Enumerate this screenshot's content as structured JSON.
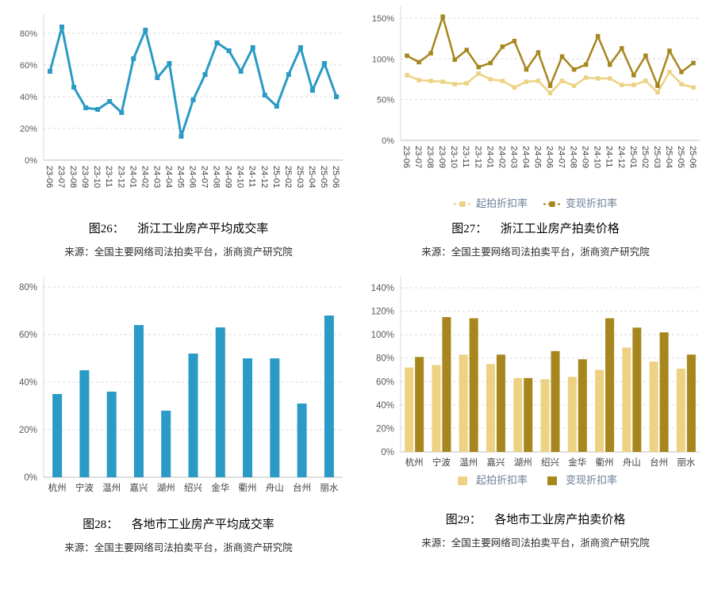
{
  "palette": {
    "teal": "#2B9AC4",
    "gold_light": "#EDD284",
    "gold_dark": "#A6861D",
    "grid_color": "#D9D9D9",
    "axis_color": "#BFBFBF",
    "tick_label_color": "#595959",
    "x_label_color": "#404040",
    "legend_text_color": "#6C7F96"
  },
  "months": [
    "23-06",
    "23-07",
    "23-08",
    "23-09",
    "23-10",
    "23-11",
    "23-12",
    "24-01",
    "24-02",
    "24-03",
    "24-04",
    "24-05",
    "24-06",
    "24-07",
    "24-08",
    "24-09",
    "24-10",
    "24-11",
    "24-12",
    "25-01",
    "25-02",
    "25-03",
    "25-04",
    "25-05",
    "25-06"
  ],
  "cities": [
    "杭州",
    "宁波",
    "温州",
    "嘉兴",
    "湖州",
    "绍兴",
    "金华",
    "衢州",
    "舟山",
    "台州",
    "丽水"
  ],
  "figures": [
    {
      "id": "fig26",
      "title_label": "图26：",
      "title": "浙江工业房产平均成交率",
      "source": "来源：全国主要网络司法拍卖平台，浙商资产研究院",
      "chart_data": {
        "type": "line",
        "x_key": "months",
        "yticks": [
          0,
          20,
          40,
          60,
          80
        ],
        "ytick_suffix": "%",
        "grid": "dashed-horizontal",
        "legend": false,
        "x_label_rotation": 90,
        "series": [
          {
            "name": "平均成交率",
            "color": "#2B9AC4",
            "values": [
              56,
              84,
              46,
              33,
              32,
              37,
              30,
              64,
              82,
              52,
              61,
              15,
              38,
              54,
              74,
              69,
              56,
              71,
              41,
              34,
              54,
              71,
              44,
              61,
              40
            ]
          }
        ]
      }
    },
    {
      "id": "fig27",
      "title_label": "图27：",
      "title": "浙江工业房产拍卖价格",
      "source": "来源：全国主要网络司法拍卖平台，浙商资产研究院",
      "chart_data": {
        "type": "line",
        "x_key": "months",
        "yticks": [
          0,
          50,
          100,
          150
        ],
        "ytick_suffix": "%",
        "grid": "dashed-horizontal",
        "legend": true,
        "legend_marker": "line",
        "legend_position": "bottom",
        "x_label_rotation": 90,
        "series": [
          {
            "name": "起拍折扣率",
            "color": "#EDD284",
            "values": [
              80,
              74,
              73,
              72,
              69,
              70,
              82,
              75,
              73,
              65,
              72,
              73,
              58,
              73,
              67,
              77,
              76,
              76,
              68,
              68,
              73,
              59,
              84,
              69,
              65
            ]
          },
          {
            "name": "变现折扣率",
            "color": "#A6861D",
            "values": [
              104,
              96,
              107,
              152,
              99,
              111,
              90,
              95,
              115,
              122,
              87,
              108,
              67,
              103,
              87,
              93,
              128,
              93,
              113,
              80,
              104,
              67,
              110,
              84,
              95
            ]
          }
        ]
      }
    },
    {
      "id": "fig28",
      "title_label": "图28：",
      "title": "各地市工业房产平均成交率",
      "source": "来源：全国主要网络司法拍卖平台，浙商资产研究院",
      "chart_data": {
        "type": "bar",
        "x_key": "cities",
        "yticks": [
          0,
          20,
          40,
          60,
          80
        ],
        "ytick_suffix": "%",
        "grid": "dashed-horizontal",
        "legend": false,
        "x_label_rotation": 0,
        "series": [
          {
            "name": "平均成交率",
            "color": "#2B9AC4",
            "values": [
              35,
              45,
              36,
              64,
              28,
              52,
              63,
              50,
              50,
              31,
              68
            ]
          }
        ]
      }
    },
    {
      "id": "fig29",
      "title_label": "图29：",
      "title": "各地市工业房产拍卖价格",
      "source": "来源：全国主要网络司法拍卖平台，浙商资产研究院",
      "chart_data": {
        "type": "bar",
        "x_key": "cities",
        "yticks": [
          0,
          20,
          40,
          60,
          80,
          100,
          120,
          140
        ],
        "ytick_suffix": "%",
        "grid": "dashed-horizontal",
        "legend": true,
        "legend_marker": "square",
        "legend_position": "bottom",
        "x_label_rotation": 0,
        "series": [
          {
            "name": "起拍折扣率",
            "color": "#EDD284",
            "values": [
              72,
              74,
              83,
              75,
              63,
              62,
              64,
              70,
              89,
              77,
              71
            ]
          },
          {
            "name": "变现折扣率",
            "color": "#A6861D",
            "values": [
              81,
              115,
              114,
              83,
              63,
              86,
              79,
              114,
              106,
              102,
              83
            ]
          }
        ]
      }
    }
  ]
}
